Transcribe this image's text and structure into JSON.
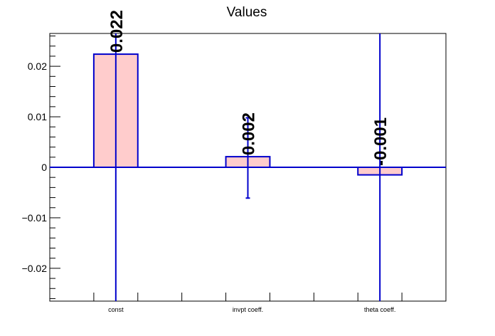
{
  "chart_data": {
    "type": "bar",
    "title": "Values",
    "xlabel": "",
    "ylabel": "",
    "categories": [
      "const",
      "invpt coeff.",
      "theta coeff."
    ],
    "values": [
      0.0224,
      0.0021,
      -0.0015
    ],
    "errors_low": [
      -0.1,
      -0.0061,
      -0.1
    ],
    "errors_high": [
      0.1,
      0.0098,
      0.1
    ],
    "data_labels": [
      "0.022",
      "0.002",
      "-0.001"
    ],
    "ylim": [
      -0.0265,
      0.0265
    ],
    "yticks": [
      -0.02,
      -0.01,
      0,
      0.01,
      0.02
    ],
    "ytick_labels": [
      "−0.02",
      "−0.01",
      "0",
      "0.01",
      "0.02"
    ],
    "grid": false,
    "colors": {
      "bar_fill": "#ffcccc",
      "bar_stroke": "#0000cc",
      "error_bar": "#0000cc",
      "zero_line": "#0000cc",
      "axis": "#000000"
    }
  }
}
